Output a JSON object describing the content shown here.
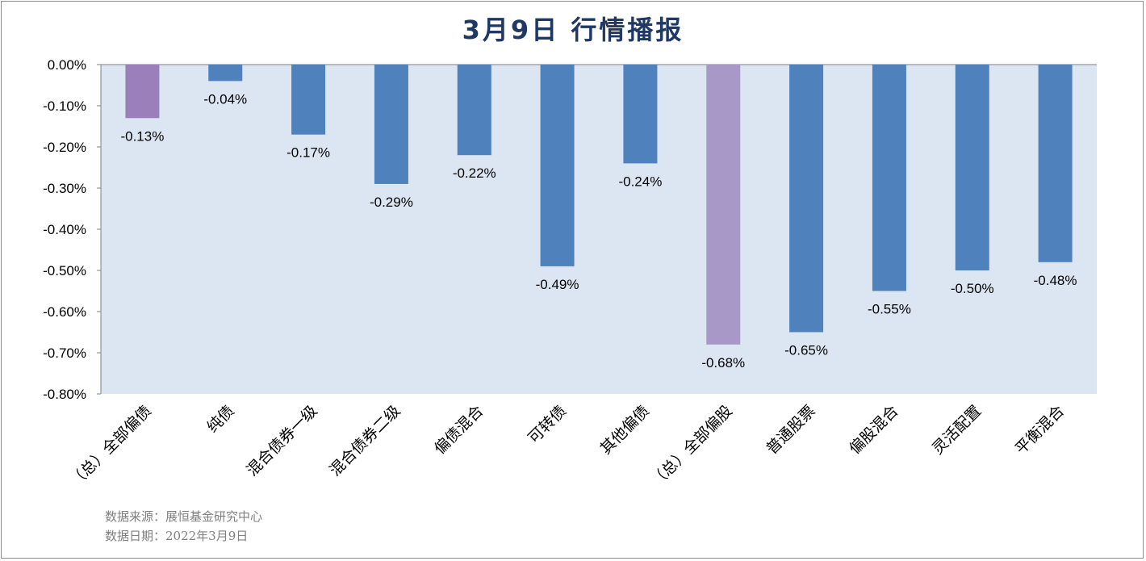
{
  "chart_data": {
    "type": "bar",
    "title": "3月9日  行情播报",
    "categories": [
      "（总）全部偏债",
      "纯债",
      "混合债券一级",
      "混合债券二级",
      "偏债混合",
      "可转债",
      "其他偏债",
      "（总）全部偏股",
      "普通股票",
      "偏股混合",
      "灵活配置",
      "平衡混合"
    ],
    "values": [
      -0.13,
      -0.04,
      -0.17,
      -0.29,
      -0.22,
      -0.49,
      -0.24,
      -0.68,
      -0.65,
      -0.55,
      -0.5,
      -0.48
    ],
    "data_labels": [
      "-0.13%",
      "-0.04%",
      "-0.17%",
      "-0.29%",
      "-0.22%",
      "-0.49%",
      "-0.24%",
      "-0.68%",
      "-0.65%",
      "-0.55%",
      "-0.50%",
      "-0.48%"
    ],
    "highlight_categories": [
      "（总）全部偏债",
      "（总）全部偏股"
    ],
    "ylim": [
      -0.8,
      0.0
    ],
    "yticks": [
      "0.00%",
      "-0.10%",
      "-0.20%",
      "-0.30%",
      "-0.40%",
      "-0.50%",
      "-0.60%",
      "-0.70%",
      "-0.80%"
    ],
    "ytick_values": [
      0,
      -0.1,
      -0.2,
      -0.3,
      -0.4,
      -0.5,
      -0.6,
      -0.7,
      -0.8
    ],
    "xlabel": "",
    "ylabel": "",
    "grid": false,
    "colors": {
      "bar": "#4f81bd",
      "highlight_dark": "#9b7fba",
      "highlight_light": "#a898c8",
      "plot_bg": "#dce6f2",
      "axis": "#7f7f7f",
      "title": "#1f3864"
    }
  },
  "footer": {
    "source": "数据来源：展恒基金研究中心",
    "date": "数据日期：2022年3月9日"
  }
}
